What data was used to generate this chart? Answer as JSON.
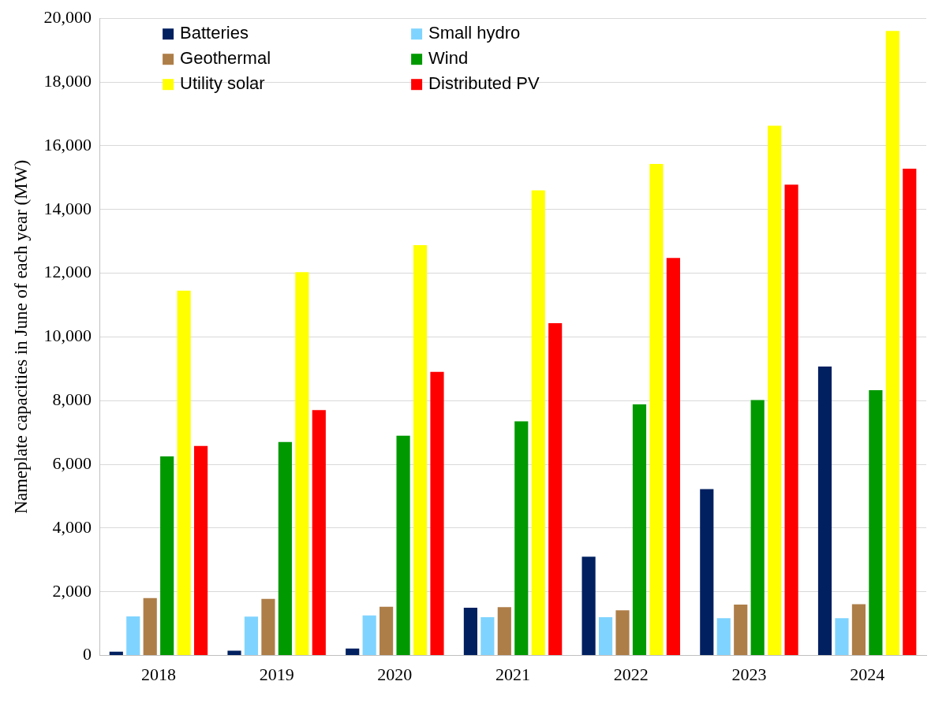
{
  "chart_data": {
    "type": "bar",
    "ylabel": "Nameplate capacities in June of each year (MW)",
    "categories": [
      "2018",
      "2019",
      "2020",
      "2021",
      "2022",
      "2023",
      "2024"
    ],
    "series": [
      {
        "name": "Batteries",
        "color": "#002060",
        "values": [
          120,
          150,
          220,
          1500,
          3100,
          5220,
          9070
        ]
      },
      {
        "name": "Small hydro",
        "color": "#7fd4ff",
        "values": [
          1230,
          1220,
          1260,
          1200,
          1200,
          1170,
          1170
        ]
      },
      {
        "name": "Geothermal",
        "color": "#ae7e48",
        "values": [
          1800,
          1780,
          1530,
          1520,
          1420,
          1600,
          1610
        ]
      },
      {
        "name": "Wind",
        "color": "#009900",
        "values": [
          6250,
          6700,
          6900,
          7350,
          7880,
          8020,
          8330
        ]
      },
      {
        "name": "Utility solar",
        "color": "#ffff00",
        "values": [
          11450,
          12030,
          12880,
          14600,
          15430,
          16630,
          19600
        ]
      },
      {
        "name": "Distributed PV",
        "color": "#ff0000",
        "values": [
          6580,
          7700,
          8900,
          10430,
          12480,
          14780,
          15280
        ]
      }
    ],
    "ylim": [
      0,
      20000
    ],
    "yticks": [
      0,
      {
        "value": 2000,
        "label": "2,000"
      },
      {
        "value": 4000,
        "label": "4,000"
      },
      {
        "value": 6000,
        "label": "6,000"
      },
      {
        "value": 8000,
        "label": "8,000"
      },
      {
        "value": 10000,
        "label": "10,000"
      },
      {
        "value": 12000,
        "label": "12,000"
      },
      {
        "value": 14000,
        "label": "14,000"
      },
      {
        "value": 16000,
        "label": "16,000"
      },
      {
        "value": 18000,
        "label": "18,000"
      },
      {
        "value": 20000,
        "label": "20,000"
      }
    ],
    "grid": "y",
    "legend": "top left"
  }
}
